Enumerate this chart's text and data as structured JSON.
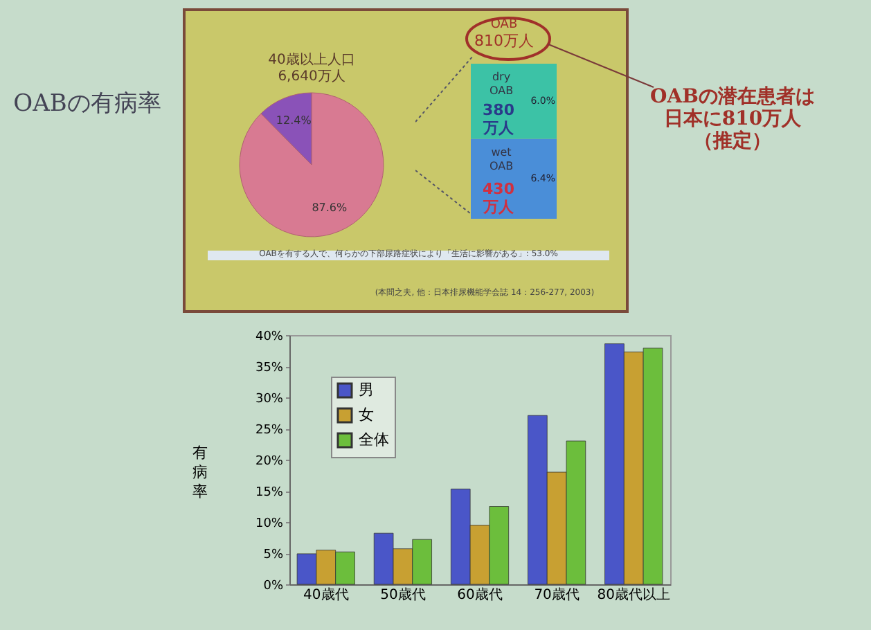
{
  "chart_data": [
    {
      "type": "pie",
      "title": "40歳以上人口\n6,640万人",
      "categories": [
        null,
        null
      ],
      "values": [
        87.6,
        12.4
      ],
      "colors": [
        "#d87a92",
        "#8a52b8"
      ],
      "value_labels": [
        "87.6%",
        "12.4%"
      ],
      "annotations": [
        "OABの有病率",
        "OABを有する人で、何らかの下部尿路症状により「生活に影響がある」: 53.0%",
        "(本間之夫, 他：日本排尿機能学会誌 14：256-277, 2003)",
        "OABの潜在患者は日本に810万人（推定）"
      ]
    },
    {
      "type": "bar",
      "stacked": true,
      "categories": [
        null
      ],
      "series": [
        {
          "name": "wet OAB",
          "color": "#4a8ed8",
          "values": [
            6.4
          ],
          "value_labels": [
            "6.4%"
          ]
        },
        {
          "name": "dry OAB",
          "color": "#3cc2a6",
          "values": [
            6.0
          ],
          "value_labels": [
            "6.0%"
          ]
        }
      ],
      "annotations": [
        "OAB",
        "810万人",
        "430万人",
        "380万人"
      ]
    },
    {
      "type": "bar",
      "ylabel": "有病率",
      "categories": [
        "40歳代",
        "50歳代",
        "60歳代",
        "70歳代",
        "80歳代以上"
      ],
      "series": [
        {
          "name": "男",
          "color": "#4a56c8",
          "values": [
            4.9,
            8.2,
            15.3,
            27.1,
            38.6
          ]
        },
        {
          "name": "女",
          "color": "#c8a032",
          "values": [
            5.5,
            5.7,
            9.5,
            18.0,
            37.3
          ]
        },
        {
          "name": "全体",
          "color": "#6cbe3c",
          "values": [
            5.2,
            7.2,
            12.5,
            23.0,
            37.9
          ]
        }
      ],
      "ylim": [
        0,
        40
      ],
      "yticks": [
        {
          "value": 0,
          "label": "0%"
        },
        {
          "value": 5,
          "label": "5%"
        },
        {
          "value": 10,
          "label": "10%"
        },
        {
          "value": 15,
          "label": "15%"
        },
        {
          "value": 20,
          "label": "20%"
        },
        {
          "value": 25,
          "label": "25%"
        },
        {
          "value": 30,
          "label": "30%"
        },
        {
          "value": 35,
          "label": "35%"
        },
        {
          "value": 40,
          "label": "40%"
        }
      ],
      "grid": false,
      "legend": "top left"
    }
  ]
}
